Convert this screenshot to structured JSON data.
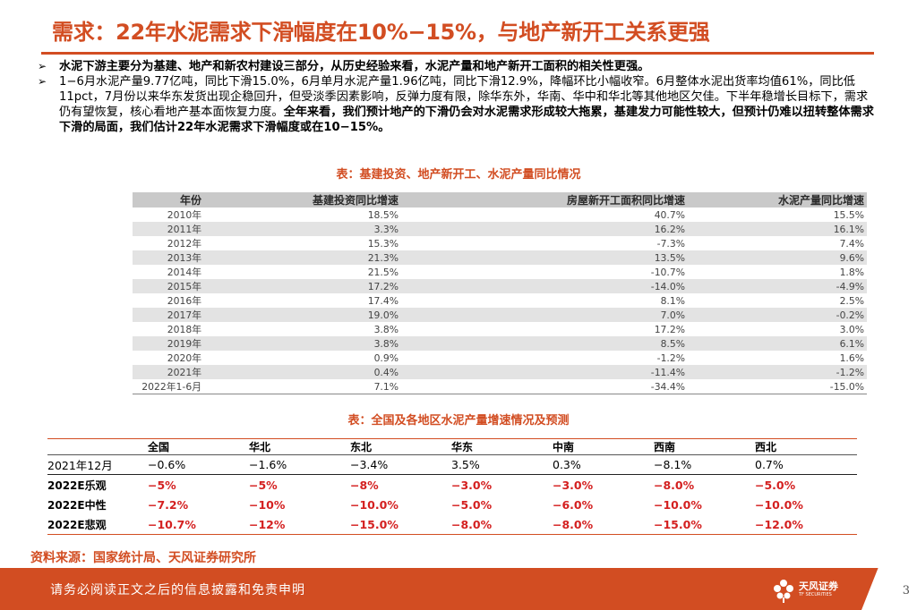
{
  "title": "需求：22年水泥需求下滑幅度在10%−15%，与地产新开工关系更强",
  "bullet_marker": "➢",
  "bullets": {
    "b1": "水泥下游主要分为基建、地产和新农村建设三部分，从历史经验来看，水泥产量和地产新开工面积的相关性更强。",
    "b2_normal": "1−6月水泥产量9.77亿吨，同比下滑15.0%，6月单月水泥产量1.96亿吨，同比下滑12.9%，降幅环比小幅收窄。6月整体水泥出货率均值61%，同比低11pct，7月份以来华东发货出现企稳回升，但受淡季因素影响，反弹力度有限，除华东外，华南、华中和华北等其他地区欠佳。下半年稳增长目标下，需求仍有望恢复，核心看地产基本面恢复力度。",
    "b2_bold": "全年来看，我们预计地产的下滑仍会对水泥需求形成较大拖累，基建发力可能性较大，但预计仍难以扭转整体需求下滑的局面，我们估计22年水泥需求下滑幅度或在10−15%。"
  },
  "table1": {
    "caption": "表：基建投资、地产新开工、水泥产量同比情况",
    "headers": [
      "年份",
      "基建投资同比增速",
      "房屋新开工面积同比增速",
      "水泥产量同比增速"
    ],
    "rows": [
      [
        "2010年",
        "18.5%",
        "40.7%",
        "15.5%"
      ],
      [
        "2011年",
        "3.3%",
        "16.2%",
        "16.1%"
      ],
      [
        "2012年",
        "15.3%",
        "-7.3%",
        "7.4%"
      ],
      [
        "2013年",
        "21.3%",
        "13.5%",
        "9.6%"
      ],
      [
        "2014年",
        "21.5%",
        "-10.7%",
        "1.8%"
      ],
      [
        "2015年",
        "17.2%",
        "-14.0%",
        "-4.9%"
      ],
      [
        "2016年",
        "17.4%",
        "8.1%",
        "2.5%"
      ],
      [
        "2017年",
        "19.0%",
        "7.0%",
        "-0.2%"
      ],
      [
        "2018年",
        "3.8%",
        "17.2%",
        "3.0%"
      ],
      [
        "2019年",
        "3.8%",
        "8.5%",
        "6.1%"
      ],
      [
        "2020年",
        "0.9%",
        "-1.2%",
        "1.6%"
      ],
      [
        "2021年",
        "0.4%",
        "-11.4%",
        "-1.2%"
      ],
      [
        "2022年1-6月",
        "7.1%",
        "-34.4%",
        "-15.0%"
      ]
    ]
  },
  "table2": {
    "caption": "表：全国及各地区水泥产量增速情况及预测",
    "headers": [
      "",
      "全国",
      "华北",
      "东北",
      "华东",
      "中南",
      "西南",
      "西北"
    ],
    "rows": [
      [
        "2021年12月",
        "−0.6%",
        "−1.6%",
        "−3.4%",
        "3.5%",
        "0.3%",
        "−8.1%",
        "0.7%"
      ],
      [
        "2022E乐观",
        "−5%",
        "−5%",
        "−8%",
        "−3.0%",
        "−3.0%",
        "−8.0%",
        "−5.0%"
      ],
      [
        "2022E中性",
        "−7.2%",
        "−10%",
        "−10.0%",
        "−5.0%",
        "−6.0%",
        "−10.0%",
        "−10.0%"
      ],
      [
        "2022E悲观",
        "−10.7%",
        "−12%",
        "−15.0%",
        "−8.0%",
        "−8.0%",
        "−15.0%",
        "−12.0%"
      ]
    ]
  },
  "source": "资料来源：国家统计局、天风证券研究所",
  "footer": {
    "disclaimer": "请务必阅读正文之后的信息披露和免责申明",
    "logo_name": "天风证券",
    "logo_sub": "TF SECURITIES",
    "page_number": "3"
  },
  "colors": {
    "accent": "#d24d22",
    "negative": "#d42020",
    "header_gray": "#c9c9c9",
    "row_gray": "#e3e3e3"
  }
}
